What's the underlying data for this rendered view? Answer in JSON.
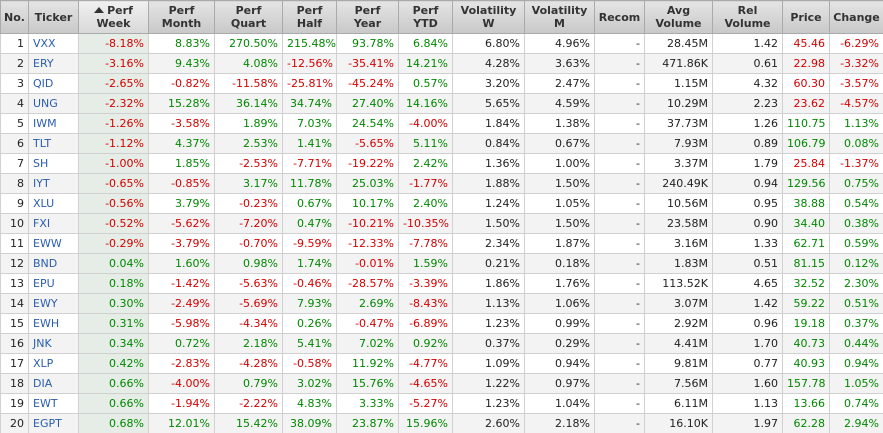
{
  "table": {
    "header": [
      [
        "No."
      ],
      [
        "Ticker"
      ],
      [
        "Perf",
        "Week"
      ],
      [
        "Perf",
        "Month"
      ],
      [
        "Perf",
        "Quart"
      ],
      [
        "Perf",
        "Half"
      ],
      [
        "Perf",
        "Year"
      ],
      [
        "Perf",
        "YTD"
      ],
      [
        "Volatility",
        "W"
      ],
      [
        "Volatility",
        "M"
      ],
      [
        "Recom"
      ],
      [
        "Avg",
        "Volume"
      ],
      [
        "Rel",
        "Volume"
      ],
      [
        "Price"
      ],
      [
        "Change"
      ]
    ],
    "rows": [
      [
        "1",
        "VXX",
        "-8.18%",
        "8.83%",
        "270.50%",
        "215.48%",
        "93.78%",
        "6.84%",
        "6.80%",
        "4.96%",
        "-",
        "28.45M",
        "1.42",
        "45.46",
        "-6.29%"
      ],
      [
        "2",
        "ERY",
        "-3.16%",
        "9.43%",
        "4.08%",
        "-12.56%",
        "-35.41%",
        "14.21%",
        "4.28%",
        "3.63%",
        "-",
        "471.86K",
        "0.61",
        "22.98",
        "-3.32%"
      ],
      [
        "3",
        "QID",
        "-2.65%",
        "-0.82%",
        "-11.58%",
        "-25.81%",
        "-45.24%",
        "0.57%",
        "3.20%",
        "2.47%",
        "-",
        "1.15M",
        "4.32",
        "60.30",
        "-3.57%"
      ],
      [
        "4",
        "UNG",
        "-2.32%",
        "15.28%",
        "36.14%",
        "34.74%",
        "27.40%",
        "14.16%",
        "5.65%",
        "4.59%",
        "-",
        "10.29M",
        "2.23",
        "23.62",
        "-4.57%"
      ],
      [
        "5",
        "IWM",
        "-1.26%",
        "-3.58%",
        "1.89%",
        "7.03%",
        "24.54%",
        "-4.00%",
        "1.84%",
        "1.38%",
        "-",
        "37.73M",
        "1.26",
        "110.75",
        "1.13%"
      ],
      [
        "6",
        "TLT",
        "-1.12%",
        "4.37%",
        "2.53%",
        "1.41%",
        "-5.65%",
        "5.11%",
        "0.84%",
        "0.67%",
        "-",
        "7.93M",
        "0.89",
        "106.79",
        "0.08%"
      ],
      [
        "7",
        "SH",
        "-1.00%",
        "1.85%",
        "-2.53%",
        "-7.71%",
        "-19.22%",
        "2.42%",
        "1.36%",
        "1.00%",
        "-",
        "3.37M",
        "1.79",
        "25.84",
        "-1.37%"
      ],
      [
        "8",
        "IYT",
        "-0.65%",
        "-0.85%",
        "3.17%",
        "11.78%",
        "25.03%",
        "-1.77%",
        "1.88%",
        "1.50%",
        "-",
        "240.49K",
        "0.94",
        "129.56",
        "0.75%"
      ],
      [
        "9",
        "XLU",
        "-0.56%",
        "3.79%",
        "-0.23%",
        "0.67%",
        "10.17%",
        "2.40%",
        "1.24%",
        "1.05%",
        "-",
        "10.56M",
        "0.95",
        "38.88",
        "0.54%"
      ],
      [
        "10",
        "FXI",
        "-0.52%",
        "-5.62%",
        "-7.20%",
        "0.47%",
        "-10.21%",
        "-10.35%",
        "1.50%",
        "1.50%",
        "-",
        "23.58M",
        "0.90",
        "34.40",
        "0.38%"
      ],
      [
        "11",
        "EWW",
        "-0.29%",
        "-3.79%",
        "-0.70%",
        "-9.59%",
        "-12.33%",
        "-7.78%",
        "2.34%",
        "1.87%",
        "-",
        "3.16M",
        "1.33",
        "62.71",
        "0.59%"
      ],
      [
        "12",
        "BND",
        "0.04%",
        "1.60%",
        "0.98%",
        "1.74%",
        "-0.01%",
        "1.59%",
        "0.21%",
        "0.18%",
        "-",
        "1.83M",
        "0.51",
        "81.15",
        "0.12%"
      ],
      [
        "13",
        "EPU",
        "0.18%",
        "-1.42%",
        "-5.63%",
        "-0.46%",
        "-28.57%",
        "-3.39%",
        "1.86%",
        "1.76%",
        "-",
        "113.52K",
        "4.65",
        "32.52",
        "2.30%"
      ],
      [
        "14",
        "EWY",
        "0.30%",
        "-2.49%",
        "-5.69%",
        "7.93%",
        "2.69%",
        "-8.43%",
        "1.13%",
        "1.06%",
        "-",
        "3.07M",
        "1.42",
        "59.22",
        "0.51%"
      ],
      [
        "15",
        "EWH",
        "0.31%",
        "-5.98%",
        "-4.34%",
        "0.26%",
        "-0.47%",
        "-6.89%",
        "1.23%",
        "0.99%",
        "-",
        "2.92M",
        "0.96",
        "19.18",
        "0.37%"
      ],
      [
        "16",
        "JNK",
        "0.34%",
        "0.72%",
        "2.18%",
        "5.41%",
        "7.02%",
        "0.92%",
        "0.37%",
        "0.29%",
        "-",
        "4.41M",
        "1.70",
        "40.73",
        "0.44%"
      ],
      [
        "17",
        "XLP",
        "0.42%",
        "-2.83%",
        "-4.28%",
        "-0.58%",
        "11.92%",
        "-4.77%",
        "1.09%",
        "0.94%",
        "-",
        "9.81M",
        "0.77",
        "40.93",
        "0.94%"
      ],
      [
        "18",
        "DIA",
        "0.66%",
        "-4.00%",
        "0.79%",
        "3.02%",
        "15.76%",
        "-4.65%",
        "1.22%",
        "0.97%",
        "-",
        "7.56M",
        "1.60",
        "157.78",
        "1.05%"
      ],
      [
        "19",
        "EWT",
        "0.66%",
        "-1.94%",
        "-2.22%",
        "4.83%",
        "3.33%",
        "-5.27%",
        "1.23%",
        "1.04%",
        "-",
        "6.11M",
        "1.13",
        "13.66",
        "0.74%"
      ],
      [
        "20",
        "EGPT",
        "0.68%",
        "12.01%",
        "15.42%",
        "38.09%",
        "23.87%",
        "15.96%",
        "2.60%",
        "2.18%",
        "-",
        "16.10K",
        "1.97",
        "62.28",
        "2.94%"
      ]
    ]
  }
}
